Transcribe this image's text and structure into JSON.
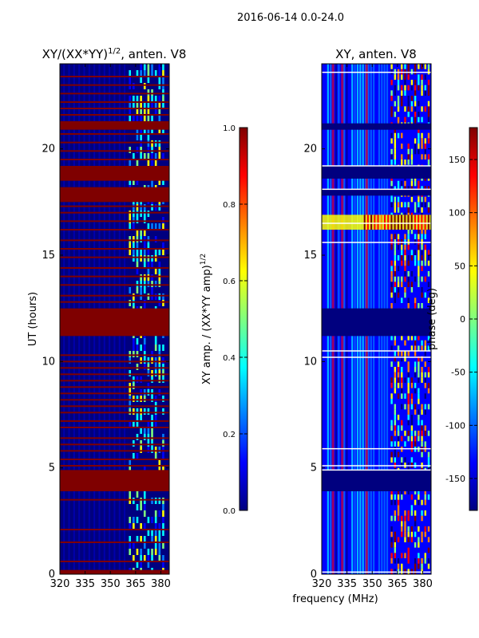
{
  "figure": {
    "suptitle": "2016-06-14 0.0-24.0"
  },
  "colors": {
    "jet": [
      "#00007f",
      "#0000ff",
      "#007fff",
      "#00ffff",
      "#7fff7f",
      "#ffff00",
      "#ff7f00",
      "#ff0000",
      "#7f0000"
    ],
    "background": "#00007f",
    "flag": "#7f0000"
  },
  "chart_data": [
    {
      "type": "heatmap",
      "title_main": "XY/(XX*YY)",
      "title_sup": "1/2",
      "title_rest": ", anten. V8",
      "ylabel": "UT (hours)",
      "xlabel": "",
      "xlim": [
        320,
        385
      ],
      "ylim": [
        0,
        24
      ],
      "xticks": [
        320,
        335,
        350,
        365,
        380
      ],
      "yticks": [
        0,
        5,
        10,
        15,
        20
      ],
      "feature_band_mhz": [
        361,
        381
      ],
      "flagged_hours": [
        [
          0.0,
          0.2
        ],
        [
          3.9,
          4.9
        ],
        [
          11.2,
          12.5
        ],
        [
          17.5,
          18.2
        ],
        [
          18.5,
          19.2
        ],
        [
          20.9,
          21.3
        ]
      ],
      "flagged_lines_hours": [
        0.6,
        1.5,
        2.1,
        3.5,
        5.1,
        5.4,
        5.8,
        6.1,
        6.4,
        6.9,
        7.2,
        7.6,
        7.9,
        8.2,
        8.5,
        8.8,
        9.1,
        9.4,
        9.7,
        10.0,
        10.3,
        12.8,
        13.1,
        13.6,
        14.0,
        14.4,
        14.9,
        15.3,
        15.7,
        16.2,
        16.6,
        17.0,
        17.3,
        19.5,
        19.9,
        20.3,
        20.7,
        21.6,
        21.9,
        22.2,
        22.6,
        23.0,
        23.4
      ],
      "colorbar": {
        "label": "XY amp. / (XX*YY amp)",
        "label_sup": "1/2",
        "min": 0.0,
        "max": 1.0,
        "ticks": [
          "0.0",
          "0.2",
          "0.4",
          "0.6",
          "0.8",
          "1.0"
        ]
      }
    },
    {
      "type": "heatmap",
      "title": "XY, anten. V8",
      "xlabel": "frequency (MHz)",
      "ylabel": "",
      "xlim": [
        320,
        385
      ],
      "ylim": [
        0,
        24
      ],
      "xticks": [
        320,
        335,
        350,
        365,
        380
      ],
      "yticks": [
        0,
        5,
        10,
        15,
        20
      ],
      "feature_band_mhz": [
        361,
        385
      ],
      "empty_hours": [
        [
          3.9,
          4.9
        ],
        [
          11.2,
          12.5
        ],
        [
          17.8,
          18.1
        ],
        [
          18.6,
          19.2
        ],
        [
          20.9,
          21.2
        ]
      ],
      "white_lines_hours": [
        0.1,
        4.9,
        5.1,
        5.9,
        10.2,
        10.5,
        15.6,
        16.5,
        18.1,
        19.2,
        23.6
      ],
      "bright_band_hours": [
        16.2,
        16.9
      ],
      "colorbar": {
        "label": "phase (deg)",
        "min": -180,
        "max": 180,
        "ticks": [
          "-150",
          "-100",
          "-50",
          "0",
          "50",
          "100",
          "150"
        ],
        "tick_values": [
          -150,
          -100,
          -50,
          0,
          50,
          100,
          150
        ]
      }
    }
  ]
}
